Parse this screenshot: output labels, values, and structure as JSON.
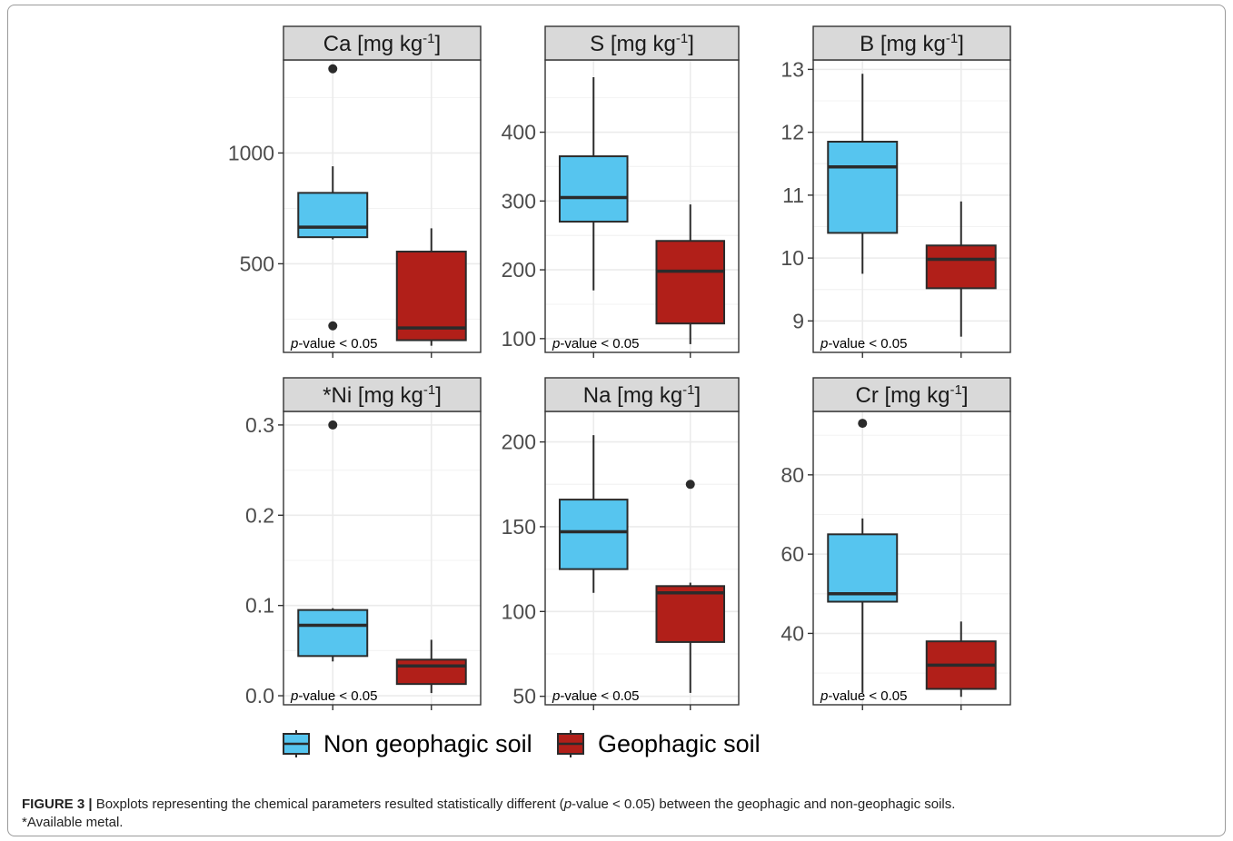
{
  "chart_data": [
    {
      "type": "box",
      "strip_title": "Ca [mg kg",
      "strip_sup": "-1",
      "strip_tail": "]",
      "ylim": [
        100,
        1420
      ],
      "ticks": [
        500,
        1000
      ],
      "tick_labels": [
        "500",
        "1000"
      ],
      "annotation_italic": "p",
      "annotation_rest": "-value < 0.05",
      "boxes": [
        {
          "group": "Non geophagic soil",
          "whisker_low": 610,
          "q1": 620,
          "median": 665,
          "q3": 820,
          "whisker_high": 940,
          "outliers": [
            1380,
            220
          ]
        },
        {
          "group": "Geophagic soil",
          "whisker_low": 130,
          "q1": 155,
          "median": 210,
          "q3": 555,
          "whisker_high": 660,
          "outliers": []
        }
      ]
    },
    {
      "type": "box",
      "strip_title": "S [mg kg",
      "strip_sup": "-1",
      "strip_tail": "]",
      "ylim": [
        80,
        505
      ],
      "ticks": [
        100,
        200,
        300,
        400
      ],
      "tick_labels": [
        "100",
        "200",
        "300",
        "400"
      ],
      "annotation_italic": "p",
      "annotation_rest": "-value < 0.05",
      "boxes": [
        {
          "group": "Non geophagic soil",
          "whisker_low": 170,
          "q1": 270,
          "median": 305,
          "q3": 365,
          "whisker_high": 480,
          "outliers": []
        },
        {
          "group": "Geophagic soil",
          "whisker_low": 92,
          "q1": 122,
          "median": 198,
          "q3": 242,
          "whisker_high": 295,
          "outliers": []
        }
      ]
    },
    {
      "type": "box",
      "strip_title": "B [mg kg",
      "strip_sup": "-1",
      "strip_tail": "]",
      "ylim": [
        8.5,
        13.15
      ],
      "ticks": [
        9,
        10,
        11,
        12,
        13
      ],
      "tick_labels": [
        "9",
        "10",
        "11",
        "12",
        "13"
      ],
      "annotation_italic": "p",
      "annotation_rest": "-value < 0.05",
      "boxes": [
        {
          "group": "Non geophagic soil",
          "whisker_low": 9.75,
          "q1": 10.4,
          "median": 11.45,
          "q3": 11.85,
          "whisker_high": 12.93,
          "outliers": []
        },
        {
          "group": "Geophagic soil",
          "whisker_low": 8.75,
          "q1": 9.52,
          "median": 9.98,
          "q3": 10.2,
          "whisker_high": 10.9,
          "outliers": []
        }
      ]
    },
    {
      "type": "box",
      "strip_title": "*Ni [mg kg",
      "strip_sup": "-1",
      "strip_tail": "]",
      "ylim": [
        -0.01,
        0.315
      ],
      "ticks": [
        0.0,
        0.1,
        0.2,
        0.3
      ],
      "tick_labels": [
        "0.0",
        "0.1",
        "0.2",
        "0.3"
      ],
      "annotation_italic": "p",
      "annotation_rest": "-value < 0.05",
      "boxes": [
        {
          "group": "Non geophagic soil",
          "whisker_low": 0.038,
          "q1": 0.044,
          "median": 0.078,
          "q3": 0.095,
          "whisker_high": 0.097,
          "outliers": [
            0.3
          ]
        },
        {
          "group": "Geophagic soil",
          "whisker_low": 0.003,
          "q1": 0.013,
          "median": 0.033,
          "q3": 0.04,
          "whisker_high": 0.062,
          "outliers": []
        }
      ]
    },
    {
      "type": "box",
      "strip_title": "Na [mg kg",
      "strip_sup": "-1",
      "strip_tail": "]",
      "ylim": [
        45,
        218
      ],
      "ticks": [
        50,
        100,
        150,
        200
      ],
      "tick_labels": [
        "50",
        "100",
        "150",
        "200"
      ],
      "annotation_italic": "p",
      "annotation_rest": "-value < 0.05",
      "boxes": [
        {
          "group": "Non geophagic soil",
          "whisker_low": 111,
          "q1": 125,
          "median": 147,
          "q3": 166,
          "whisker_high": 204,
          "outliers": []
        },
        {
          "group": "Geophagic soil",
          "whisker_low": 52,
          "q1": 82,
          "median": 111,
          "q3": 115,
          "whisker_high": 117,
          "outliers": [
            175
          ]
        }
      ]
    },
    {
      "type": "box",
      "strip_title": "Cr [mg kg",
      "strip_sup": "-1",
      "strip_tail": "]",
      "ylim": [
        22,
        96
      ],
      "ticks": [
        40,
        60,
        80
      ],
      "tick_labels": [
        "40",
        "60",
        "80"
      ],
      "annotation_italic": "p",
      "annotation_rest": "-value < 0.05",
      "boxes": [
        {
          "group": "Non geophagic soil",
          "whisker_low": 25,
          "q1": 48,
          "median": 50,
          "q3": 65,
          "whisker_high": 69,
          "outliers": [
            93
          ]
        },
        {
          "group": "Geophagic soil",
          "whisker_low": 24,
          "q1": 26,
          "median": 32,
          "q3": 38,
          "whisker_high": 43,
          "outliers": []
        }
      ]
    }
  ],
  "legend": {
    "items": [
      {
        "label": "Non geophagic soil",
        "color": "#56C5EF"
      },
      {
        "label": "Geophagic soil",
        "color": "#B11F19"
      }
    ]
  },
  "colors": {
    "strip_bg": "#d9d9d9",
    "panel_border": "#333333",
    "gridline": "#ebebeb",
    "box_line": "#2b2b2b"
  },
  "caption": {
    "label": "FIGURE 3 |",
    "text_before": " Boxplots representing the chemical parameters resulted statistically different (",
    "italic": "p",
    "text_after": "-value < 0.05) between the geophagic and non-geophagic soils.",
    "footnote": "*Available metal."
  }
}
